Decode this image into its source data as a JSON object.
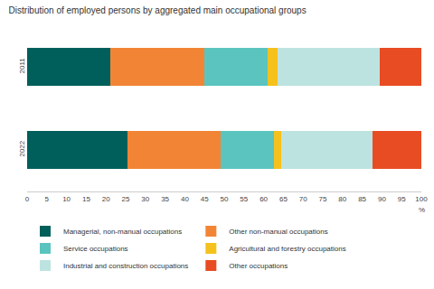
{
  "chart_data": {
    "type": "bar",
    "title": "Distribution of employed persons by aggregated main occupational groups",
    "x_label": "%",
    "orientation": "horizontal",
    "stacked": true,
    "grid": false,
    "legend": "bottom",
    "categories": [
      "2011",
      "2022"
    ],
    "series": [
      {
        "name": "Managerial, non-manual occupations",
        "color": "#005f5a",
        "values": [
          21,
          25.5
        ]
      },
      {
        "name": "Other non-manual occupations",
        "color": "#f28535",
        "values": [
          24,
          23.5
        ]
      },
      {
        "name": "Service occupations",
        "color": "#5bc4bf",
        "values": [
          16,
          13.5
        ]
      },
      {
        "name": "Agricultural and forestry occupations",
        "color": "#f5c11c",
        "values": [
          2.5,
          2
        ]
      },
      {
        "name": "Industrial and construction occupations",
        "color": "#bde3e1",
        "values": [
          26,
          23
        ]
      },
      {
        "name": "Other occupations",
        "color": "#e84c23",
        "values": [
          10.5,
          12.5
        ]
      }
    ],
    "xlim": [
      0,
      100
    ],
    "xticks": [
      0,
      5,
      10,
      15,
      20,
      25,
      30,
      35,
      40,
      45,
      50,
      55,
      60,
      65,
      70,
      75,
      80,
      85,
      90,
      95,
      100
    ]
  }
}
